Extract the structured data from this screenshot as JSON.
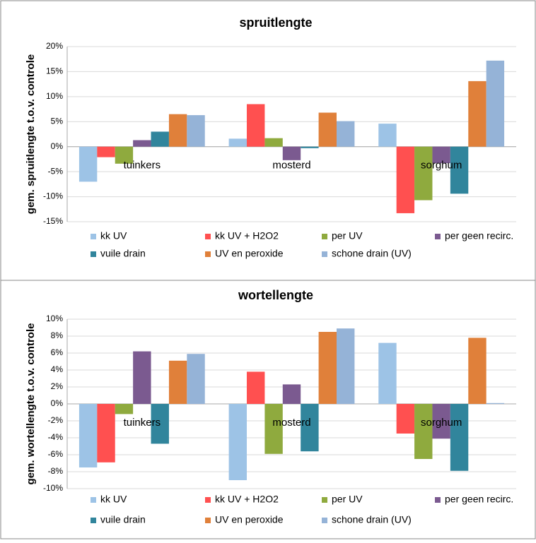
{
  "chart_data": [
    {
      "type": "bar",
      "title": "spruitlengte",
      "y_label": "gem. spruitlengte t.o.v. controle",
      "categories": [
        "tuinkers",
        "mosterd",
        "sorghum"
      ],
      "series": [
        {
          "name": "kk UV",
          "color": "#9dc3e6",
          "values": [
            -7.0,
            1.6,
            4.6
          ]
        },
        {
          "name": "kk UV + H2O2",
          "color": "#ff5050",
          "values": [
            -2.1,
            8.5,
            -13.3
          ]
        },
        {
          "name": "per UV",
          "color": "#8faa3e",
          "values": [
            -3.4,
            1.7,
            -10.7
          ]
        },
        {
          "name": "per geen recirc.",
          "color": "#7b5a90",
          "values": [
            1.3,
            -2.7,
            -3.3
          ]
        },
        {
          "name": "vuile drain",
          "color": "#31859c",
          "values": [
            3.0,
            -0.3,
            -9.4
          ]
        },
        {
          "name": "UV en peroxide",
          "color": "#e0803a",
          "values": [
            6.5,
            6.8,
            13.1
          ]
        },
        {
          "name": "schone drain (UV)",
          "color": "#95b3d7",
          "values": [
            6.3,
            5.1,
            17.2
          ]
        }
      ],
      "ylim": [
        -15,
        20
      ],
      "yticks": [
        {
          "value": -15,
          "label": "-15%"
        },
        {
          "value": -10,
          "label": "-10%"
        },
        {
          "value": -5,
          "label": "-5%"
        },
        {
          "value": 0,
          "label": "0%"
        },
        {
          "value": 5,
          "label": "5%"
        },
        {
          "value": 10,
          "label": "10%"
        },
        {
          "value": 15,
          "label": "15%"
        },
        {
          "value": 20,
          "label": "20%"
        }
      ],
      "grid": true
    },
    {
      "type": "bar",
      "title": "wortellengte",
      "y_label": "gem. wortellengte t.o.v. controle",
      "categories": [
        "tuinkers",
        "mosterd",
        "sorghum"
      ],
      "series": [
        {
          "name": "kk UV",
          "color": "#9dc3e6",
          "values": [
            -7.5,
            -9.0,
            7.2
          ]
        },
        {
          "name": "kk UV + H2O2",
          "color": "#ff5050",
          "values": [
            -6.9,
            3.8,
            -3.5
          ]
        },
        {
          "name": "per UV",
          "color": "#8faa3e",
          "values": [
            -1.2,
            -5.9,
            -6.5
          ]
        },
        {
          "name": "per geen recirc.",
          "color": "#7b5a90",
          "values": [
            6.2,
            2.3,
            -4.1
          ]
        },
        {
          "name": "vuile drain",
          "color": "#31859c",
          "values": [
            -4.7,
            -5.6,
            -7.9
          ]
        },
        {
          "name": "UV en peroxide",
          "color": "#e0803a",
          "values": [
            5.1,
            8.5,
            7.8
          ]
        },
        {
          "name": "schone drain (UV)",
          "color": "#95b3d7",
          "values": [
            5.9,
            8.9,
            0.1
          ]
        }
      ],
      "ylim": [
        -10,
        10
      ],
      "yticks": [
        {
          "value": -10,
          "label": "-10%"
        },
        {
          "value": -8,
          "label": "-8%"
        },
        {
          "value": -6,
          "label": "-6%"
        },
        {
          "value": -4,
          "label": "-4%"
        },
        {
          "value": -2,
          "label": "-2%"
        },
        {
          "value": 0,
          "label": "0%"
        },
        {
          "value": 2,
          "label": "2%"
        },
        {
          "value": 4,
          "label": "4%"
        },
        {
          "value": 6,
          "label": "6%"
        },
        {
          "value": 8,
          "label": "8%"
        },
        {
          "value": 10,
          "label": "10%"
        }
      ],
      "grid": true
    }
  ]
}
